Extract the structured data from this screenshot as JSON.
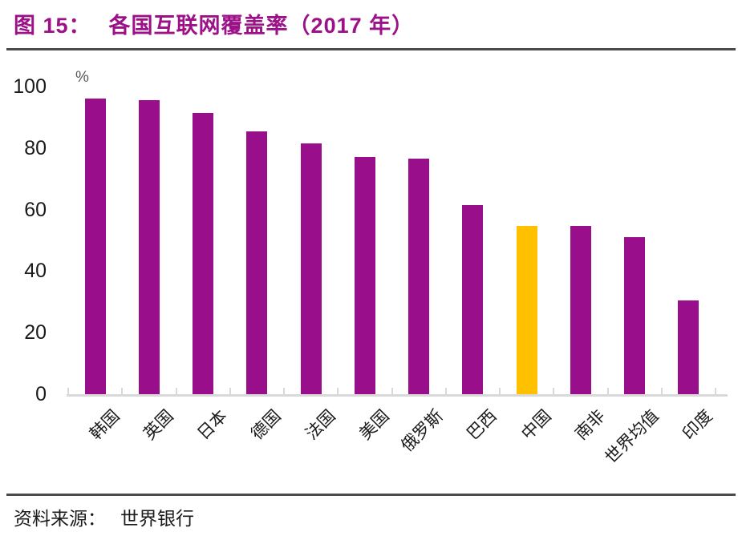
{
  "header": {
    "title_prefix": "图 15：",
    "title_text": "各国互联网覆盖率（2017 年）"
  },
  "chart_data": {
    "type": "bar",
    "title": "各国互联网覆盖率（2017 年）",
    "unit_label": "%",
    "categories": [
      "韩国",
      "英国",
      "日本",
      "德国",
      "法国",
      "美国",
      "俄罗斯",
      "巴西",
      "中国",
      "南非",
      "世界均值",
      "印度"
    ],
    "values": [
      96,
      95.5,
      91.5,
      85.5,
      81.5,
      77,
      76.5,
      61.5,
      54.8,
      54.6,
      51,
      30.5
    ],
    "highlight_index": 8,
    "highlight_category": "中国",
    "xlabel": "",
    "ylabel": "%",
    "ylim": [
      0,
      100
    ],
    "yticks": [
      0,
      20,
      40,
      60,
      80,
      100
    ],
    "grid": false,
    "legend": "none",
    "bar_color": "#990E8A",
    "highlight_color": "#FFC000",
    "axis_color": "#D9D9D9"
  },
  "footer": {
    "source_label": "资料来源：",
    "source_value": "世界银行"
  },
  "colors": {
    "title": "#9C1088",
    "rule": "#4A4A4C",
    "text": "#1A1A1A",
    "muted": "#595959"
  }
}
